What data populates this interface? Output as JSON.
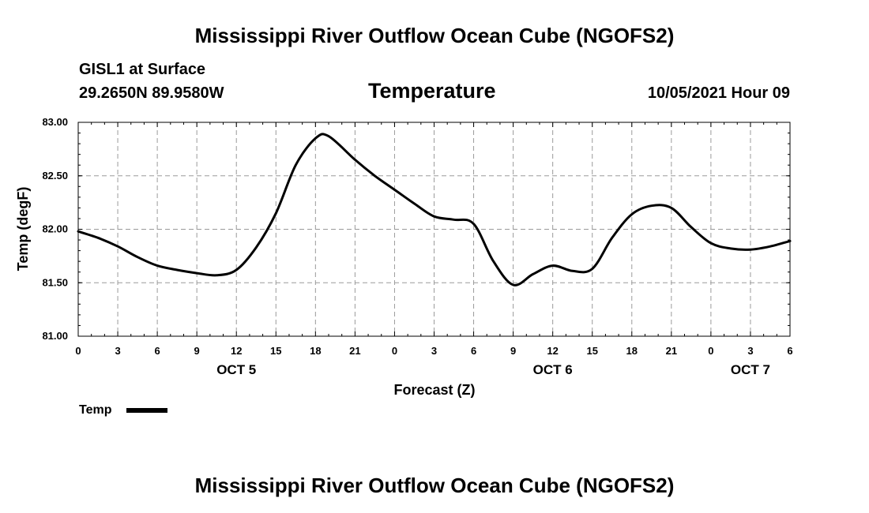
{
  "header": {
    "title": "Mississippi River Outflow Ocean Cube (NGOFS2)",
    "station": "GISL1 at Surface",
    "coords": "29.2650N  89.9580W",
    "variable": "Temperature",
    "datetime": "10/05/2021 Hour 09"
  },
  "footer": {
    "title": "Mississippi River Outflow Ocean Cube (NGOFS2)"
  },
  "chart_data": {
    "type": "line",
    "title": "Temperature",
    "xlabel": "Forecast (Z)",
    "ylabel": "Temp (degF)",
    "ylim": [
      81.0,
      83.0
    ],
    "xlim": [
      0,
      54
    ],
    "grid": true,
    "y_ticks": [
      81.0,
      81.5,
      82.0,
      82.5,
      83.0
    ],
    "y_tick_labels": [
      "81.00",
      "81.50",
      "82.00",
      "82.50",
      "83.00"
    ],
    "x_ticks": [
      0,
      3,
      6,
      9,
      12,
      15,
      18,
      21,
      24,
      27,
      30,
      33,
      36,
      39,
      42,
      45,
      48,
      51,
      54
    ],
    "x_tick_labels": [
      "0",
      "3",
      "6",
      "9",
      "12",
      "15",
      "18",
      "21",
      "0",
      "3",
      "6",
      "9",
      "12",
      "15",
      "18",
      "21",
      "0",
      "3",
      "6"
    ],
    "date_labels": [
      {
        "hour": 12,
        "label": "OCT 5"
      },
      {
        "hour": 36,
        "label": "OCT 6"
      },
      {
        "hour": 51,
        "label": "OCT 7"
      }
    ],
    "legend": {
      "label": "Temp",
      "position": "bottom-left"
    },
    "series": [
      {
        "name": "Temp",
        "color": "#000000",
        "x": [
          0,
          1.5,
          3,
          4.5,
          6,
          7.5,
          9,
          10.5,
          12,
          13.5,
          15,
          16.5,
          18,
          19,
          21,
          22.5,
          24,
          25.5,
          27,
          28.5,
          30,
          31.5,
          33,
          34.5,
          36,
          37.5,
          39,
          40.5,
          42,
          43.5,
          45,
          46.5,
          48,
          49.5,
          51,
          52.5,
          54
        ],
        "values": [
          81.98,
          81.92,
          81.84,
          81.74,
          81.66,
          81.62,
          81.59,
          81.57,
          81.62,
          81.83,
          82.15,
          82.6,
          82.85,
          82.87,
          82.65,
          82.5,
          82.37,
          82.24,
          82.12,
          82.09,
          82.05,
          81.7,
          81.48,
          81.58,
          81.66,
          81.61,
          81.63,
          81.92,
          82.14,
          82.22,
          82.2,
          82.02,
          81.87,
          81.82,
          81.81,
          81.84,
          81.89
        ]
      }
    ]
  }
}
